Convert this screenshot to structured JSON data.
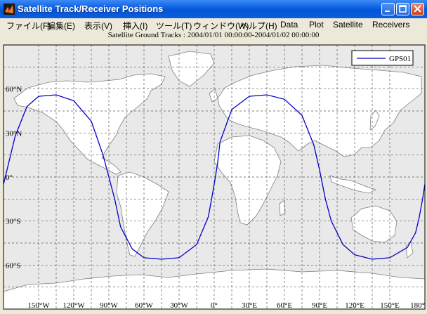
{
  "window": {
    "title": "Satellite Track/Receiver Positions",
    "titlebar_color": "#0a5fe0"
  },
  "menu": {
    "items": [
      "ファイル(F)",
      "編集(E)",
      "表示(V)",
      "挿入(I)",
      "ツール(T)",
      "ウィンドウ(W)",
      "ヘルプ(H)",
      "Data",
      "Plot",
      "Satellite",
      "Receivers"
    ]
  },
  "plot": {
    "title": "Satellite Ground Tracks : 2004/01/01 00:00:00-2004/01/02 00:00:00",
    "legend": "GPS01",
    "ocean_color": "#e9e9e9",
    "land_color": "#ffffff",
    "coast_color": "#7f7f7f",
    "track_color": "#0000c8"
  },
  "chart_data": {
    "type": "line",
    "title": "Satellite Ground Tracks : 2004/01/01 00:00:00-2004/01/02 00:00:00",
    "xlim": [
      -180,
      180
    ],
    "ylim": [
      -90,
      90
    ],
    "x_ticks": [
      "150°W",
      "120°W",
      "90°W",
      "60°W",
      "30°W",
      "0°",
      "30°E",
      "60°E",
      "90°E",
      "120°E",
      "150°E",
      "180°"
    ],
    "y_ticks": [
      "60°N",
      "30°N",
      "0°",
      "30°S",
      "60°S"
    ],
    "grid": true,
    "legend_position": "top-right",
    "series": [
      {
        "name": "GPS01",
        "lon": [
          -180,
          -170,
          -160,
          -150,
          -135,
          -120,
          -105,
          -95,
          -90,
          -85,
          -80,
          -70,
          -60,
          -45,
          -30,
          -15,
          -5,
          0,
          3,
          5,
          15,
          30,
          45,
          60,
          75,
          85,
          90,
          95,
          100,
          110,
          120,
          135,
          150,
          165,
          172,
          175,
          178,
          180
        ],
        "lat": [
          -5,
          28,
          48,
          55,
          56,
          52,
          38,
          15,
          0,
          -15,
          -34,
          -49,
          -55,
          -56,
          -55,
          -46,
          -27,
          -5,
          10,
          24,
          46,
          55,
          56,
          53,
          42,
          22,
          5,
          -15,
          -30,
          -46,
          -53,
          -56,
          -55,
          -48,
          -38,
          -28,
          -15,
          -5
        ]
      }
    ]
  }
}
